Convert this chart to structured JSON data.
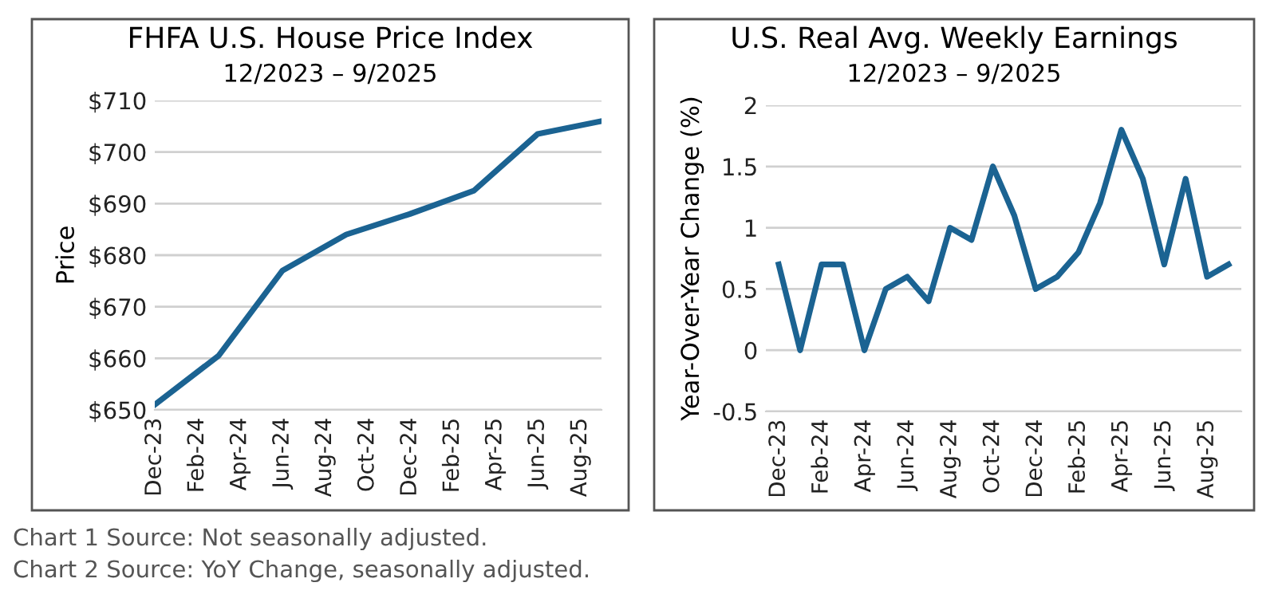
{
  "chart_data": [
    {
      "type": "line",
      "title": "FHFA U.S. House Price Index",
      "subtitle": "12/2023 – 9/2025",
      "ylabel": "Price",
      "x": [
        "2023-12",
        "2024-03",
        "2024-06",
        "2024-09",
        "2024-12",
        "2025-03",
        "2025-06",
        "2025-09"
      ],
      "series": [
        {
          "color": "#1b6392",
          "values": [
            651,
            660.5,
            677,
            684,
            688,
            692.5,
            703.5,
            706
          ]
        }
      ],
      "xlim": [
        "2023-12",
        "2025-09"
      ],
      "xticks": [
        {
          "value": "2023-12",
          "label": "Dec-23"
        },
        {
          "value": "2024-02",
          "label": "Feb-24"
        },
        {
          "value": "2024-04",
          "label": "Apr-24"
        },
        {
          "value": "2024-06",
          "label": "Jun-24"
        },
        {
          "value": "2024-08",
          "label": "Aug-24"
        },
        {
          "value": "2024-10",
          "label": "Oct-24"
        },
        {
          "value": "2024-12",
          "label": "Dec-24"
        },
        {
          "value": "2025-02",
          "label": "Feb-25"
        },
        {
          "value": "2025-04",
          "label": "Apr-25"
        },
        {
          "value": "2025-06",
          "label": "Jun-25"
        },
        {
          "value": "2025-08",
          "label": "Aug-25"
        }
      ],
      "ylim": [
        650,
        710
      ],
      "yticks": [
        {
          "value": 650,
          "label": "$650"
        },
        {
          "value": 660,
          "label": "$660"
        },
        {
          "value": 670,
          "label": "$670"
        },
        {
          "value": 680,
          "label": "$680"
        },
        {
          "value": 690,
          "label": "$690"
        },
        {
          "value": 700,
          "label": "$700"
        },
        {
          "value": 710,
          "label": "$710"
        }
      ],
      "grid": "y",
      "line_style": "solid",
      "annotations": [
        "Chart 1 Source: Not seasonally adjusted."
      ]
    },
    {
      "type": "line",
      "title": "U.S. Real Avg. Weekly Earnings",
      "subtitle": "12/2023 – 9/2025",
      "ylabel": "Year-Over-Year Change (%)",
      "categories": [
        "Dec-23",
        null,
        "Feb-24",
        null,
        "Apr-24",
        null,
        "Jun-24",
        null,
        "Aug-24",
        null,
        "Oct-24",
        null,
        "Dec-24",
        null,
        "Feb-25",
        null,
        "Apr-25",
        null,
        "Jun-25",
        null,
        "Aug-25",
        null
      ],
      "series": [
        {
          "color": "#1b6392",
          "values": [
            0.7,
            0,
            0.7,
            0.7,
            0,
            0.5,
            0.6,
            0.4,
            1.0,
            0.9,
            1.5,
            1.1,
            0.5,
            0.6,
            0.8,
            1.2,
            1.8,
            1.4,
            0.7,
            1.4,
            0.6,
            0.7
          ]
        }
      ],
      "ylim": [
        -0.5,
        2
      ],
      "yticks": [
        -0.5,
        0,
        0.5,
        1,
        1.5,
        2
      ],
      "grid": "y",
      "line_style": "solid",
      "annotations": [
        "Chart 2 Source: YoY Change, seasonally adjusted."
      ]
    }
  ]
}
